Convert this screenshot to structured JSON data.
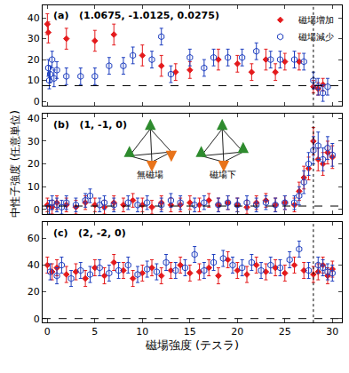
{
  "chart_data": [
    {
      "type": "scatter",
      "title": "(a)   (1.0675, -1.0125, 0.0275)",
      "xlim": [
        -0.5,
        31
      ],
      "xticks": [
        0,
        5,
        10,
        15,
        20,
        25,
        30
      ],
      "ylim": [
        -2,
        46
      ],
      "yticks": [
        0,
        10,
        20,
        30,
        40
      ],
      "tick_labels": "y",
      "legend": "top right",
      "reference_y": 7.5,
      "reference_x": 28,
      "series": [
        {
          "name": "磁場増加",
          "color": "#e41a1c",
          "marker": "diamond",
          "x": [
            0,
            0.1,
            2,
            5,
            7,
            10,
            12,
            13.5,
            15,
            18,
            20,
            21.5,
            23,
            24,
            25,
            26.5,
            28,
            28.5,
            29
          ],
          "values": [
            37,
            33,
            30,
            29,
            32,
            22,
            17,
            14,
            15,
            20,
            18,
            14,
            20,
            14,
            19,
            19,
            7,
            6,
            8
          ],
          "error": [
            5,
            5,
            5,
            5,
            5,
            5,
            5,
            4,
            4,
            5,
            4,
            4,
            5,
            4,
            4,
            4,
            3,
            3,
            3
          ]
        },
        {
          "name": "磁場減少",
          "color": "#1f3fbf",
          "marker": "hexagon-open",
          "x": [
            0.1,
            0.2,
            0.3,
            0.5,
            0.7,
            1,
            2,
            3.5,
            5,
            6.5,
            8,
            9,
            11,
            12,
            13,
            15,
            16.5,
            17.5,
            19,
            20.5,
            22,
            23.5,
            24.5,
            26,
            27,
            28,
            28.5,
            29,
            29.5
          ],
          "values": [
            16,
            10,
            13,
            20,
            11,
            15,
            12,
            12,
            12,
            17,
            17,
            22,
            20,
            31,
            13,
            21,
            16,
            21,
            21,
            21,
            24,
            20,
            20,
            20,
            19,
            10,
            7,
            4,
            7
          ],
          "error": [
            4,
            4,
            4,
            4,
            4,
            4,
            4,
            4,
            4,
            4,
            4,
            4,
            4,
            4,
            4,
            4,
            4,
            4,
            4,
            4,
            4,
            4,
            4,
            4,
            4,
            4,
            4,
            4,
            4
          ]
        }
      ]
    },
    {
      "type": "scatter",
      "title": "(b)   (1, -1, 0)",
      "y_label": "中性子強度 (任意単位)",
      "xlim": [
        -0.5,
        31
      ],
      "xticks": [
        0,
        5,
        10,
        15,
        20,
        25,
        30
      ],
      "ylim": [
        -2,
        42
      ],
      "yticks": [
        0,
        10,
        20,
        30,
        40
      ],
      "tick_labels": "y",
      "reference_y": 1.5,
      "reference_x": 28,
      "inset_labels": [
        "無磁場",
        "磁場下"
      ],
      "series": [
        {
          "name": "磁場増加",
          "color": "#e41a1c",
          "marker": "diamond",
          "x": [
            0,
            0.5,
            1,
            2,
            3,
            4,
            5,
            6,
            7,
            8,
            9,
            10,
            11,
            12,
            13,
            14,
            15,
            16,
            17,
            18,
            19,
            20,
            21,
            22,
            23,
            24,
            25,
            26,
            26.5,
            27,
            27.5,
            28,
            28.5,
            29,
            29.5,
            30
          ],
          "values": [
            2,
            1,
            3,
            2,
            1,
            3,
            2,
            1,
            3,
            2,
            4,
            2,
            1,
            3,
            2,
            2,
            3,
            2,
            4,
            2,
            3,
            2,
            1,
            3,
            4,
            2,
            3,
            2,
            8,
            14,
            18,
            30,
            22,
            20,
            25,
            23
          ],
          "error": [
            3,
            3,
            3,
            3,
            3,
            3,
            3,
            3,
            3,
            3,
            3,
            3,
            3,
            3,
            3,
            3,
            3,
            3,
            3,
            3,
            3,
            3,
            3,
            3,
            3,
            3,
            3,
            3,
            4,
            5,
            5,
            6,
            5,
            5,
            5,
            5
          ]
        },
        {
          "name": "磁場減少",
          "color": "#1f3fbf",
          "marker": "hexagon-open",
          "x": [
            0.2,
            0.5,
            1,
            1.5,
            2,
            3,
            4,
            4.5,
            5.5,
            6,
            7,
            8.5,
            9.5,
            10.5,
            12,
            13,
            14,
            15.5,
            16.5,
            18,
            19,
            20,
            21,
            22,
            23,
            24,
            25,
            26,
            26.5,
            27,
            27.5,
            28,
            28.5,
            29,
            29.5,
            30
          ],
          "values": [
            1,
            3,
            2,
            1,
            3,
            2,
            4,
            6,
            2,
            3,
            2,
            3,
            2,
            3,
            2,
            4,
            3,
            2,
            3,
            2,
            3,
            2,
            3,
            2,
            3,
            2,
            3,
            3,
            6,
            12,
            20,
            26,
            28,
            22,
            27,
            24
          ],
          "error": [
            3,
            3,
            3,
            3,
            3,
            3,
            3,
            3,
            3,
            3,
            3,
            3,
            3,
            3,
            3,
            3,
            3,
            3,
            3,
            3,
            3,
            3,
            3,
            3,
            3,
            3,
            3,
            3,
            4,
            5,
            5,
            6,
            6,
            5,
            5,
            5
          ]
        }
      ]
    },
    {
      "type": "scatter",
      "title": "(c)   (2, -2, 0)",
      "x_label": "磁場強度 (テスラ)",
      "xlim": [
        -0.5,
        31
      ],
      "xticks": [
        0,
        5,
        10,
        15,
        20,
        25,
        30
      ],
      "ylim": [
        -3,
        72
      ],
      "yticks": [
        0,
        20,
        40,
        60
      ],
      "reference_y": 0,
      "reference_x": 28,
      "series": [
        {
          "name": "磁場増加",
          "color": "#e41a1c",
          "marker": "diamond",
          "x": [
            0,
            0.5,
            1,
            2,
            3,
            4,
            5,
            6,
            7,
            8,
            9,
            10,
            11,
            12,
            13,
            14,
            15,
            16,
            17,
            18,
            19,
            20,
            21,
            22,
            23,
            24,
            25,
            26,
            27,
            28,
            28.5,
            29,
            29.5,
            30
          ],
          "values": [
            40,
            35,
            38,
            33,
            35,
            30,
            38,
            32,
            42,
            36,
            30,
            34,
            38,
            32,
            36,
            40,
            34,
            35,
            38,
            32,
            44,
            36,
            33,
            40,
            35,
            38,
            34,
            40,
            36,
            33,
            35,
            40,
            32,
            37
          ],
          "error": [
            6,
            6,
            6,
            6,
            6,
            6,
            6,
            6,
            6,
            6,
            6,
            6,
            6,
            6,
            6,
            6,
            6,
            6,
            6,
            6,
            6,
            6,
            6,
            6,
            6,
            6,
            6,
            6,
            6,
            6,
            6,
            6,
            6,
            6
          ]
        },
        {
          "name": "磁場減少",
          "color": "#1f3fbf",
          "marker": "hexagon-open",
          "x": [
            0.3,
            1,
            1.5,
            2.5,
            3.5,
            4.5,
            5.5,
            6.5,
            7.5,
            8.5,
            9.5,
            10.5,
            11.5,
            12.5,
            13.5,
            14.5,
            15.5,
            16.5,
            17.5,
            18.5,
            19.5,
            20.5,
            21.5,
            22.5,
            23.5,
            24.5,
            25.5,
            26.5,
            27.5,
            28.5,
            29,
            29.5,
            30
          ],
          "values": [
            35,
            32,
            40,
            30,
            36,
            33,
            38,
            34,
            36,
            40,
            33,
            37,
            35,
            42,
            36,
            38,
            48,
            36,
            42,
            45,
            40,
            38,
            42,
            36,
            40,
            38,
            44,
            52,
            36,
            40,
            38,
            35,
            34
          ],
          "error": [
            6,
            6,
            6,
            6,
            6,
            6,
            6,
            6,
            6,
            6,
            6,
            6,
            6,
            6,
            6,
            6,
            6,
            6,
            6,
            6,
            6,
            6,
            6,
            6,
            6,
            6,
            6,
            6,
            6,
            6,
            6,
            6,
            6
          ]
        }
      ]
    }
  ]
}
